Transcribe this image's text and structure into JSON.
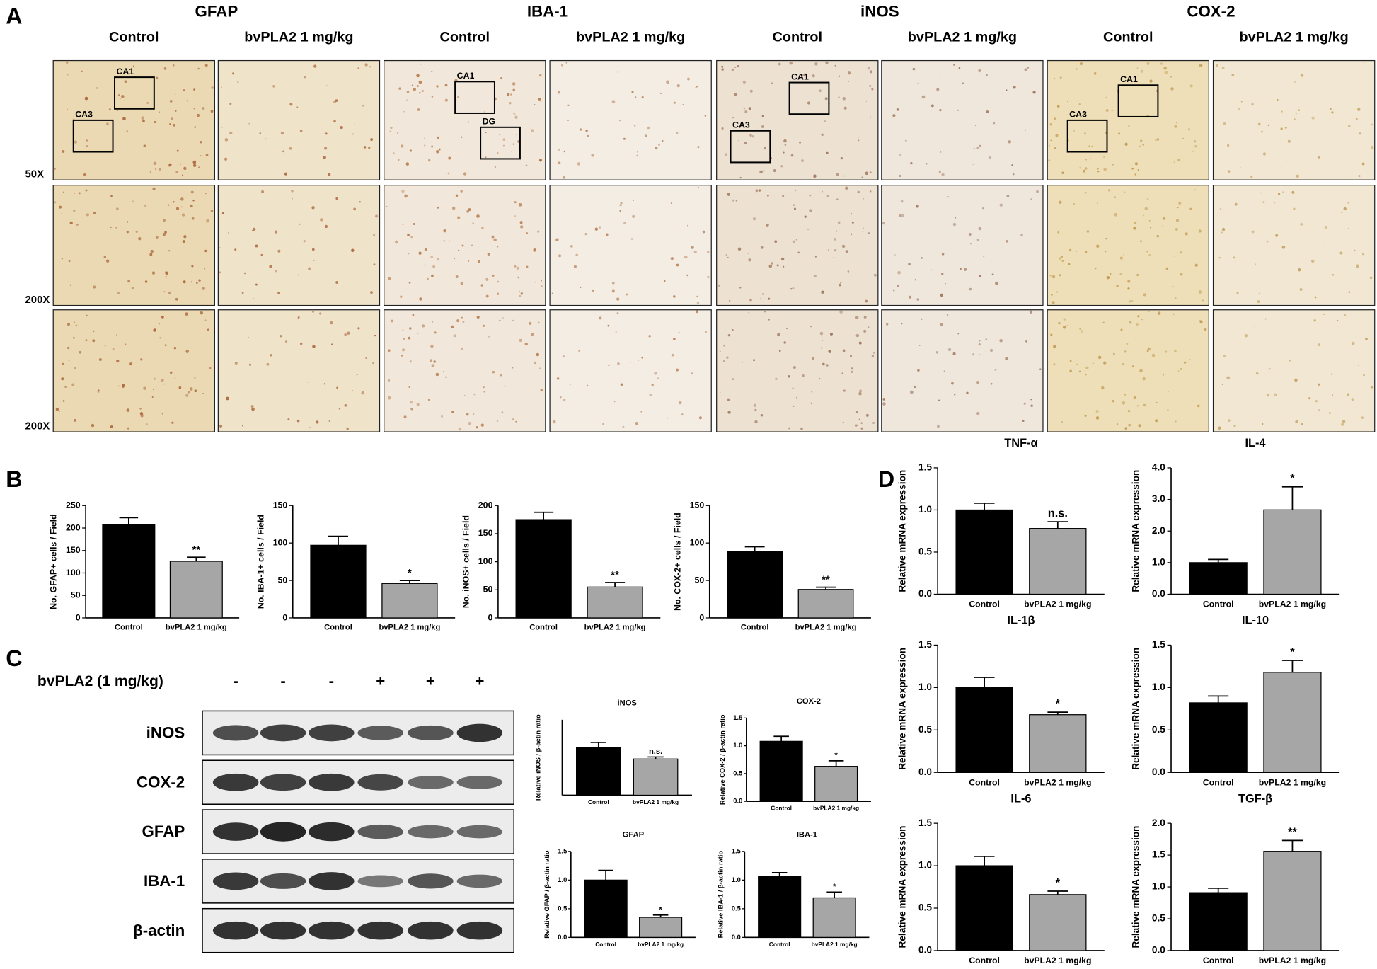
{
  "panel_a": {
    "letter": "A",
    "stains": [
      "GFAP",
      "IBA-1",
      "iNOS",
      "COX-2"
    ],
    "groups": [
      "Control",
      "bvPLA2 1 mg/kg"
    ],
    "magnifications": [
      "50X",
      "200X",
      "200X"
    ],
    "regions": [
      [
        "CA1",
        "CA3"
      ],
      [
        "CA1",
        "DG"
      ],
      [
        "CA1",
        "CA3"
      ],
      [
        "CA1",
        "CA3"
      ]
    ]
  },
  "panel_b": {
    "letter": "B"
  },
  "panel_c": {
    "letter": "C",
    "treatment": "bvPLA2 (1 mg/kg)",
    "lanes": [
      "-",
      "-",
      "-",
      "+",
      "+",
      "+"
    ],
    "proteins": [
      "iNOS",
      "COX-2",
      "GFAP",
      "IBA-1",
      "β-actin"
    ]
  },
  "panel_d": {
    "letter": "D"
  },
  "chart_data": [
    {
      "type": "bar",
      "ylabel": "No. GFAP+ cells / Field",
      "categories": [
        "Control",
        "bvPLA2 1 mg/kg"
      ],
      "values": [
        208,
        126
      ],
      "errors": [
        15,
        9
      ],
      "colors": [
        "#000000",
        "#a6a6a6"
      ],
      "significance": "**",
      "ylim": [
        0,
        250
      ],
      "yticks": [
        0,
        50,
        100,
        150,
        200,
        250
      ]
    },
    {
      "type": "bar",
      "ylabel": "No. IBA-1+ cells / Field",
      "categories": [
        "Control",
        "bvPLA2 1 mg/kg"
      ],
      "values": [
        97,
        46
      ],
      "errors": [
        12,
        4
      ],
      "colors": [
        "#000000",
        "#a6a6a6"
      ],
      "significance": "*",
      "ylim": [
        0,
        150
      ],
      "yticks": [
        0,
        50,
        100,
        150
      ]
    },
    {
      "type": "bar",
      "ylabel": "No. iNOS+ cells / Field",
      "categories": [
        "Control",
        "bvPLA2 1 mg/kg"
      ],
      "values": [
        175,
        55
      ],
      "errors": [
        13,
        8
      ],
      "colors": [
        "#000000",
        "#a6a6a6"
      ],
      "significance": "**",
      "ylim": [
        0,
        200
      ],
      "yticks": [
        0,
        50,
        100,
        150,
        200
      ]
    },
    {
      "type": "bar",
      "ylabel": "No. COX-2+ cells / Field",
      "categories": [
        "Control",
        "bvPLA2 1 mg/kg"
      ],
      "values": [
        89,
        38
      ],
      "errors": [
        6,
        3
      ],
      "colors": [
        "#000000",
        "#a6a6a6"
      ],
      "significance": "**",
      "ylim": [
        0,
        150
      ],
      "yticks": [
        0,
        50,
        100,
        150
      ]
    },
    {
      "type": "bar",
      "title": "iNOS",
      "ylabel": "Relative iNOS / β-actin ratio",
      "categories": [
        "Control",
        "bvPLA2 1 mg/kg"
      ],
      "values": [
        0.95,
        0.72
      ],
      "errors": [
        0.1,
        0.04
      ],
      "colors": [
        "#000000",
        "#a6a6a6"
      ],
      "significance": "n.s.",
      "ylim": [
        0,
        1.5
      ]
    },
    {
      "type": "bar",
      "title": "COX-2",
      "ylabel": "Relative COX-2 / β-actin ratio",
      "categories": [
        "Control",
        "bvPLA2 1 mg/kg"
      ],
      "values": [
        1.08,
        0.63
      ],
      "errors": [
        0.09,
        0.1
      ],
      "colors": [
        "#000000",
        "#a6a6a6"
      ],
      "significance": "*",
      "ylim": [
        0,
        1.5
      ],
      "yticks": [
        {
          "value": 0,
          "label": "0.0"
        },
        {
          "value": 0.5,
          "label": "0.5"
        },
        {
          "value": 1,
          "label": "1.0"
        },
        {
          "value": 1.5,
          "label": "1.5"
        }
      ]
    },
    {
      "type": "bar",
      "title": "GFAP",
      "ylabel": "Relative GFAP / β-actin ratio",
      "categories": [
        "Control",
        "bvPLA2 1 mg/kg"
      ],
      "values": [
        1.0,
        0.35
      ],
      "errors": [
        0.17,
        0.04
      ],
      "colors": [
        "#000000",
        "#a6a6a6"
      ],
      "significance": "*",
      "ylim": [
        0,
        1.5
      ],
      "yticks": [
        {
          "value": 0,
          "label": "0.0"
        },
        {
          "value": 0.5,
          "label": "0.5"
        },
        {
          "value": 1,
          "label": "1.0"
        },
        {
          "value": 1.5,
          "label": "1.5"
        }
      ]
    },
    {
      "type": "bar",
      "title": "IBA-1",
      "ylabel": "Relative IBA-1 / β-actin ratio",
      "categories": [
        "Control",
        "bvPLA2 1 mg/kg"
      ],
      "values": [
        1.07,
        0.69
      ],
      "errors": [
        0.06,
        0.1
      ],
      "colors": [
        "#000000",
        "#a6a6a6"
      ],
      "significance": "*",
      "ylim": [
        0,
        1.5
      ],
      "yticks": [
        {
          "value": 0,
          "label": "0.0"
        },
        {
          "value": 0.5,
          "label": "0.5"
        },
        {
          "value": 1,
          "label": "1.0"
        },
        {
          "value": 1.5,
          "label": "1.5"
        }
      ]
    },
    {
      "type": "bar",
      "title": "TNF-α",
      "ylabel": "Relative mRNA expression",
      "categories": [
        "Control",
        "bvPLA2 1 mg/kg"
      ],
      "values": [
        1.0,
        0.78
      ],
      "errors": [
        0.08,
        0.08
      ],
      "colors": [
        "#000000",
        "#a6a6a6"
      ],
      "significance": "n.s.",
      "ylim": [
        0,
        1.5
      ],
      "yticks": [
        {
          "value": 0,
          "label": "0.0"
        },
        {
          "value": 0.5,
          "label": "0.5"
        },
        {
          "value": 1,
          "label": "1.0"
        },
        {
          "value": 1.5,
          "label": "1.5"
        }
      ]
    },
    {
      "type": "bar",
      "title": "IL-4",
      "ylabel": "Relative mRNA expression",
      "categories": [
        "Control",
        "bvPLA2 1 mg/kg"
      ],
      "values": [
        1.0,
        2.67
      ],
      "errors": [
        0.1,
        0.73
      ],
      "colors": [
        "#000000",
        "#a6a6a6"
      ],
      "significance": "*",
      "ylim": [
        0,
        4
      ],
      "yticks": [
        {
          "value": 0,
          "label": "0.0"
        },
        {
          "value": 1,
          "label": "1.0"
        },
        {
          "value": 2,
          "label": "2.0"
        },
        {
          "value": 3,
          "label": "3.0"
        },
        {
          "value": 4,
          "label": "4.0"
        }
      ]
    },
    {
      "type": "bar",
      "title": "IL-1β",
      "ylabel": "Relative mRNA expression",
      "categories": [
        "Control",
        "bvPLA2 1 mg/kg"
      ],
      "values": [
        1.0,
        0.68
      ],
      "errors": [
        0.12,
        0.03
      ],
      "colors": [
        "#000000",
        "#a6a6a6"
      ],
      "significance": "*",
      "ylim": [
        0,
        1.5
      ],
      "yticks": [
        {
          "value": 0,
          "label": "0.0"
        },
        {
          "value": 0.5,
          "label": "0.5"
        },
        {
          "value": 1,
          "label": "1.0"
        },
        {
          "value": 1.5,
          "label": "1.5"
        }
      ]
    },
    {
      "type": "bar",
      "title": "IL-10",
      "ylabel": "Relative mRNA expression",
      "categories": [
        "Control",
        "bvPLA2 1 mg/kg"
      ],
      "values": [
        0.82,
        1.18
      ],
      "errors": [
        0.08,
        0.14
      ],
      "colors": [
        "#000000",
        "#a6a6a6"
      ],
      "significance": "*",
      "ylim": [
        0,
        1.5
      ],
      "yticks": [
        {
          "value": 0,
          "label": "0.0"
        },
        {
          "value": 0.5,
          "label": "0.5"
        },
        {
          "value": 1,
          "label": "1.0"
        },
        {
          "value": 1.5,
          "label": "1.5"
        }
      ]
    },
    {
      "type": "bar",
      "title": "IL-6",
      "ylabel": "Relative mRNA expression",
      "categories": [
        "Control",
        "bvPLA2 1 mg/kg"
      ],
      "values": [
        1.0,
        0.66
      ],
      "errors": [
        0.11,
        0.04
      ],
      "colors": [
        "#000000",
        "#a6a6a6"
      ],
      "significance": "*",
      "ylim": [
        0,
        1.5
      ],
      "yticks": [
        {
          "value": 0,
          "label": "0.0"
        },
        {
          "value": 0.5,
          "label": "0.5"
        },
        {
          "value": 1,
          "label": "1.0"
        },
        {
          "value": 1.5,
          "label": "1.5"
        }
      ]
    },
    {
      "type": "bar",
      "title": "TGF-β",
      "ylabel": "Relative mRNA expression",
      "categories": [
        "Control",
        "bvPLA2 1 mg/kg"
      ],
      "values": [
        0.91,
        1.56
      ],
      "errors": [
        0.07,
        0.17
      ],
      "colors": [
        "#000000",
        "#a6a6a6"
      ],
      "significance": "**",
      "ylim": [
        0,
        2
      ],
      "yticks": [
        {
          "value": 0,
          "label": "0.0"
        },
        {
          "value": 0.5,
          "label": "0.5"
        },
        {
          "value": 1,
          "label": "1.0"
        },
        {
          "value": 1.5,
          "label": "1.5"
        },
        {
          "value": 2,
          "label": "2.0"
        }
      ]
    }
  ]
}
